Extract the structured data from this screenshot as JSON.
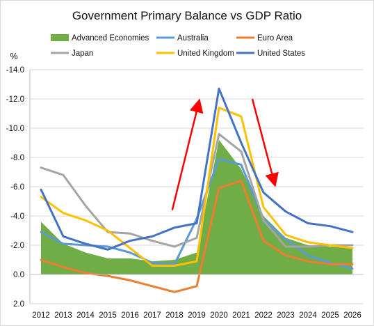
{
  "chart_data": {
    "type": "line",
    "title": "Government Primary Balance vs GDP Ratio",
    "ylabel": "%",
    "ylim": [
      2.0,
      -14.0
    ],
    "y_reversed": true,
    "yticks": [
      -14.0,
      -12.0,
      -10.0,
      -8.0,
      -6.0,
      -4.0,
      -2.0,
      0.0,
      2.0
    ],
    "ytick_labels": [
      "-14.0",
      "-12.0",
      "-10.0",
      "-8.0",
      "-6.0",
      "-4.0",
      "-2.0",
      "0.0",
      "2.0"
    ],
    "grid": true,
    "legend_position": "top",
    "categories": [
      "2012",
      "2013",
      "2014",
      "2015",
      "2016",
      "2017",
      "2018",
      "2019",
      "2020",
      "2021",
      "2022",
      "2023",
      "2024",
      "2025",
      "2026"
    ],
    "series": [
      {
        "name": "Advanced Economies",
        "kind": "area",
        "color": "#70ad47",
        "values": [
          -3.6,
          -2.1,
          -1.5,
          -1.1,
          -1.1,
          -0.9,
          -1.0,
          -1.5,
          -9.2,
          -7.2,
          -4.0,
          -2.5,
          -2.0,
          -1.9,
          -1.8
        ]
      },
      {
        "name": "Australia",
        "kind": "line",
        "color": "#5b9bd5",
        "values": [
          -2.9,
          -2.1,
          -2.0,
          -1.9,
          -1.5,
          -0.8,
          -0.7,
          -3.8,
          -7.9,
          -7.5,
          -3.8,
          -2.4,
          -1.3,
          -0.8,
          -0.4
        ]
      },
      {
        "name": "Euro Area",
        "kind": "line",
        "color": "#ed7d31",
        "values": [
          -1.0,
          -0.5,
          -0.1,
          0.1,
          0.4,
          0.8,
          1.2,
          0.8,
          -5.9,
          -6.4,
          -2.3,
          -1.3,
          -0.9,
          -0.7,
          -0.7
        ]
      },
      {
        "name": "Japan",
        "kind": "line",
        "color": "#a5a5a5",
        "values": [
          -7.3,
          -6.8,
          -4.7,
          -2.9,
          -2.8,
          -2.3,
          -1.9,
          -2.5,
          -9.6,
          -8.4,
          -3.7,
          -1.9,
          -1.9,
          -2.0,
          -2.0
        ]
      },
      {
        "name": "United Kingdom",
        "kind": "line",
        "color": "#ffc000",
        "values": [
          -5.3,
          -4.2,
          -3.7,
          -3.0,
          -1.8,
          -0.6,
          -0.6,
          -0.9,
          -11.4,
          -10.8,
          -4.6,
          -2.7,
          -2.2,
          -2.0,
          -1.8
        ]
      },
      {
        "name": "United States",
        "kind": "line",
        "color": "#4472c4",
        "values": [
          -5.8,
          -2.6,
          -2.1,
          -1.7,
          -2.3,
          -2.6,
          -3.2,
          -3.5,
          -12.7,
          -9.0,
          -5.6,
          -4.3,
          -3.5,
          -3.3,
          -2.9
        ]
      }
    ],
    "annotations": [
      {
        "kind": "arrow",
        "direction": "up",
        "color": "#ff0000",
        "from": {
          "x": "2017.9",
          "y": -4.4
        },
        "to": {
          "x": "2019.1",
          "y": -11.8
        }
      },
      {
        "kind": "arrow",
        "direction": "down",
        "color": "#ff0000",
        "from": {
          "x": "2021.5",
          "y": -12.0
        },
        "to": {
          "x": "2022.5",
          "y": -6.2
        }
      }
    ]
  }
}
